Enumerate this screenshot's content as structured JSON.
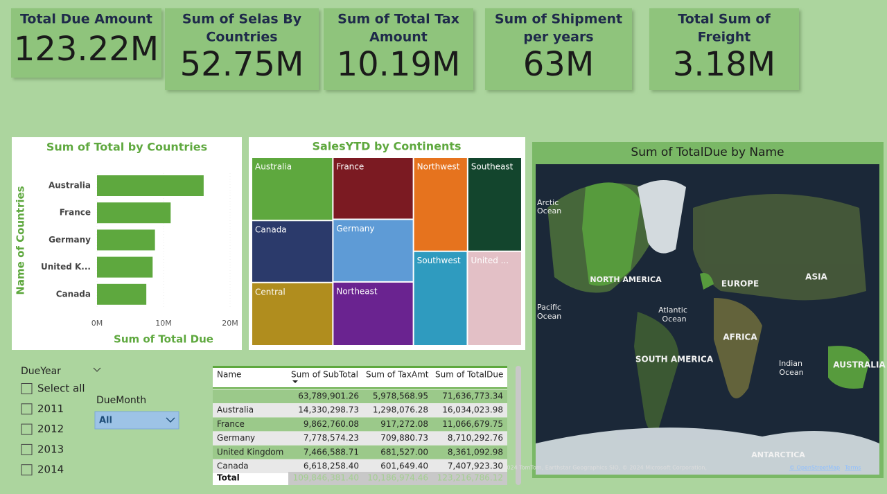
{
  "kpis": [
    {
      "title": [
        "Total Due Amount"
      ],
      "value": "123.22M"
    },
    {
      "title": [
        "Sum of Selas By",
        "Countries"
      ],
      "value": "52.75M"
    },
    {
      "title": [
        "Sum of Total Tax",
        "Amount"
      ],
      "value": "10.19M"
    },
    {
      "title": [
        "Sum of Shipment",
        "per years"
      ],
      "value": "63M"
    },
    {
      "title": [
        "Total Sum of",
        "Freight"
      ],
      "value": "3.18M"
    }
  ],
  "chart_data": [
    {
      "type": "bar",
      "title": "Sum of Total by Countries",
      "x_label": "Sum of Total Due",
      "y_label": "Name of Countries",
      "categories": [
        "Australia",
        "France",
        "Germany",
        "United K...",
        "Canada"
      ],
      "values": [
        16.03,
        11.07,
        8.71,
        8.36,
        7.41
      ],
      "color": "#5ea83e",
      "xlim": [
        0,
        20
      ],
      "xticks": [
        {
          "value": 0,
          "label": "0M"
        },
        {
          "value": 10,
          "label": "10M"
        },
        {
          "value": 20,
          "label": "20M"
        }
      ],
      "grid": true
    },
    {
      "type": "treemap",
      "title": "SalesYTD by Continents",
      "categories": [
        "Australia",
        "Canada",
        "Central",
        "France",
        "Germany",
        "Northeast",
        "Northwest",
        "Southeast",
        "Southwest",
        "United ..."
      ],
      "values": [
        10.6,
        10.4,
        10.6,
        10.3,
        10.4,
        10.6,
        10.5,
        10.5,
        10.5,
        10.6
      ],
      "colors": [
        "#5ea83e",
        "#2b3a6b",
        "#b08d1e",
        "#7b1a22",
        "#5e9bd6",
        "#6a2390",
        "#e6731e",
        "#13452d",
        "#2f9bbf",
        "#e3c0c6"
      ]
    }
  ],
  "map": {
    "title": "Sum of TotalDue by Name",
    "labels": [
      "Arctic",
      "Ocean",
      "NORTH AMERICA",
      "EUROPE",
      "ASIA",
      "Pacific",
      "Ocean",
      "Atlantic",
      "Ocean",
      "AFRICA",
      "SOUTH AMERICA",
      "Indian",
      "Ocean",
      "AUSTRALIA",
      "ANTARCTICA"
    ],
    "attribution": "© 2024 TomTom, Earthstar Geographics SIO, © 2024 Microsoft Corporation,",
    "link": "© OpenStreetMap",
    "terms": "Terms"
  },
  "slicers": {
    "year_title": "DueYear",
    "year_options": [
      "Select all",
      "2011",
      "2012",
      "2013",
      "2014"
    ],
    "month_title": "DueMonth",
    "month_value": "All"
  },
  "table": {
    "headers": [
      "Name",
      "Sum of SubTotal",
      "Sum of TaxAmt",
      "Sum of TotalDue"
    ],
    "rows": [
      [
        null,
        "63,789,901.26",
        "5,978,568.95",
        "71,636,773.34"
      ],
      [
        "Australia",
        "14,330,298.73",
        "1,298,076.28",
        "16,034,023.98"
      ],
      [
        "France",
        "9,862,760.08",
        "917,272.08",
        "11,066,679.75"
      ],
      [
        "Germany",
        "7,778,574.23",
        "709,880.73",
        "8,710,292.76"
      ],
      [
        "United Kingdom",
        "7,466,588.71",
        "681,527.00",
        "8,361,092.98"
      ],
      [
        "Canada",
        "6,618,258.40",
        "601,649.40",
        "7,407,923.30"
      ]
    ],
    "total": [
      "Total",
      "109,846,381.40",
      "10,186,974.46",
      "123,216,786.12"
    ]
  }
}
